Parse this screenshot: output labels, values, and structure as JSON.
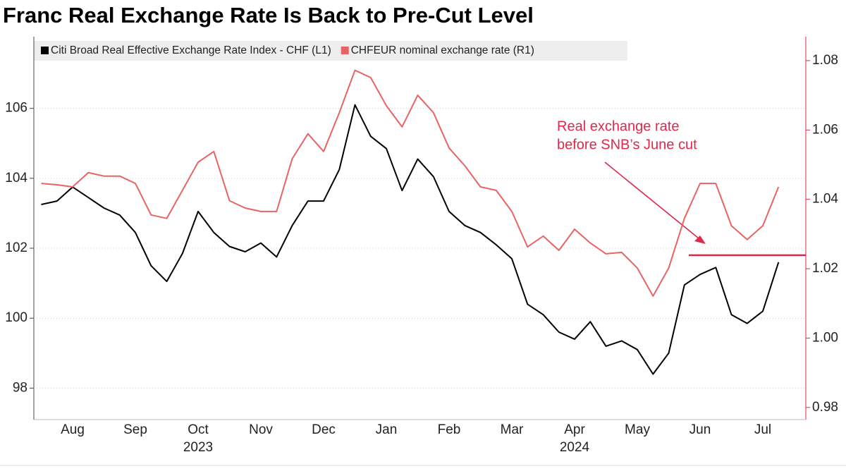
{
  "chart_data": {
    "type": "line",
    "title": "Franc Real Exchange Rate Is Back to Pre-Cut Level",
    "categories": [
      null,
      null,
      "Aug",
      null,
      null,
      null,
      "Sep",
      null,
      null,
      null,
      "Oct",
      null,
      null,
      null,
      "Nov",
      null,
      null,
      null,
      "Dec",
      null,
      null,
      null,
      "Jan",
      null,
      null,
      null,
      "Feb",
      null,
      null,
      null,
      "Mar",
      null,
      null,
      null,
      "Apr",
      null,
      null,
      null,
      "May",
      null,
      null,
      null,
      "Jun",
      null,
      null,
      null,
      "Jul",
      null
    ],
    "category_groups": [
      null,
      null,
      null,
      null,
      null,
      null,
      null,
      null,
      null,
      null,
      "2023",
      null,
      null,
      null,
      null,
      null,
      null,
      null,
      null,
      null,
      null,
      null,
      null,
      null,
      null,
      null,
      null,
      null,
      null,
      null,
      null,
      null,
      null,
      null,
      "2024",
      null,
      null,
      null,
      null,
      null,
      null,
      null,
      null,
      null,
      null,
      null,
      null,
      null
    ],
    "series": [
      {
        "name": "Citi Broad Real Effective Exchange Rate Index - CHF (L1)",
        "color": "#000000",
        "axis": "y",
        "values": [
          103.25,
          103.35,
          103.75,
          103.45,
          103.15,
          102.95,
          102.45,
          101.5,
          101.05,
          101.85,
          103.05,
          102.45,
          102.05,
          101.9,
          102.15,
          101.75,
          102.65,
          103.35,
          103.35,
          104.25,
          106.1,
          105.2,
          104.85,
          103.65,
          104.55,
          104.05,
          103.05,
          102.65,
          102.45,
          102.1,
          101.7,
          100.4,
          100.1,
          99.6,
          99.4,
          99.9,
          99.2,
          99.35,
          99.1,
          98.4,
          99.0,
          100.95,
          101.25,
          101.45,
          100.1,
          99.85,
          100.2,
          101.6
        ]
      },
      {
        "name": "CHFEUR nominal exchange rate (R1)",
        "color": "#e86464",
        "axis": "y2",
        "values": [
          1.0446,
          1.0442,
          1.0436,
          1.0477,
          1.0467,
          1.0467,
          1.0446,
          1.0355,
          1.0345,
          1.0426,
          1.0507,
          1.0538,
          1.0396,
          1.0375,
          1.0365,
          1.0365,
          1.0517,
          1.0589,
          1.0538,
          1.065,
          1.0772,
          1.0751,
          1.067,
          1.0609,
          1.07,
          1.065,
          1.0548,
          1.0497,
          1.0436,
          1.0426,
          1.0365,
          1.0263,
          1.0294,
          1.0253,
          1.0314,
          1.0274,
          1.0243,
          1.0247,
          1.0202,
          1.0121,
          1.0202,
          1.0345,
          1.0446,
          1.0446,
          1.0324,
          1.0284,
          1.0324,
          1.0436
        ]
      }
    ],
    "ylim": [
      97.1,
      108.05
    ],
    "yticks": [
      98,
      100,
      102,
      104,
      106
    ],
    "y2lim": [
      0.9765,
      1.0869
    ],
    "y2ticks": [
      0.98,
      {
        "value": 1,
        "label": "1.00"
      },
      1.02,
      1.04,
      1.06,
      1.08
    ],
    "grid": true,
    "legend": "top-left",
    "annotation": {
      "lines": [
        "Real exchange rate",
        "before SNB’s June cut"
      ],
      "color": "#e0284a"
    },
    "reference_line": {
      "value": 101.8,
      "axis": "y",
      "color": "#e0284a"
    }
  }
}
